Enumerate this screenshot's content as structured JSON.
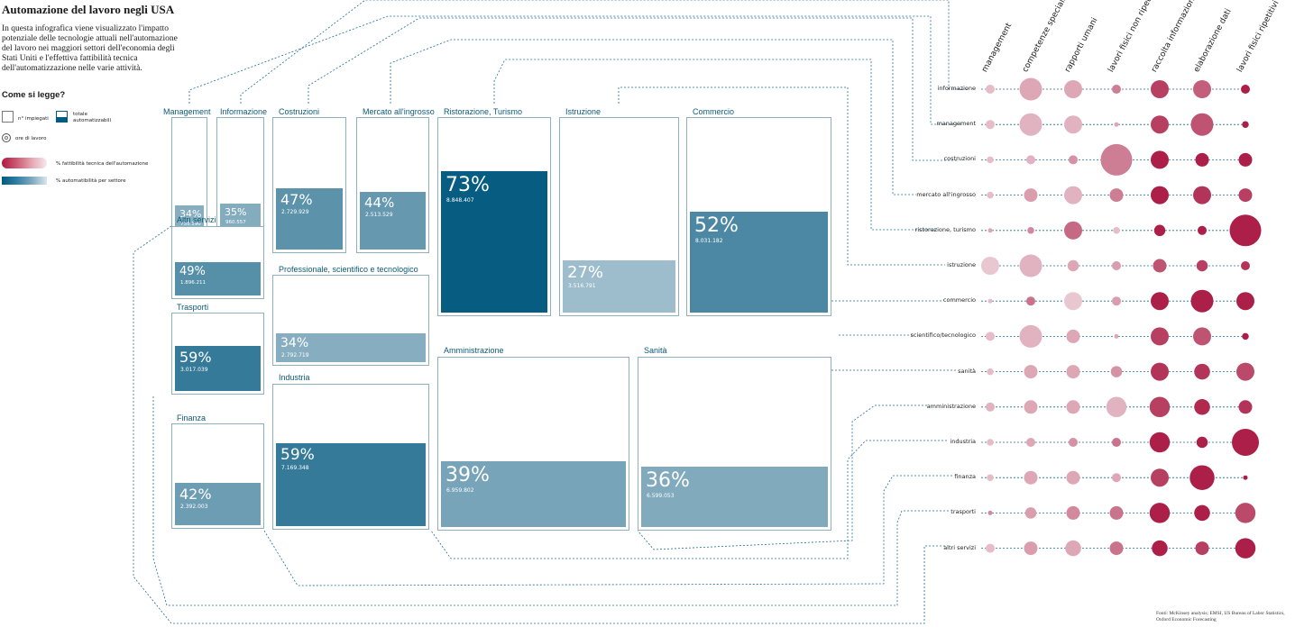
{
  "title": "Automazione del lavoro negli USA",
  "intro": "In questa infografica viene visualizzato l'impatto potenziale delle tecnologie attuali nell'automazione del lavoro nei maggiori settori dell'economia degli Stati Uniti e l'effettiva fattibilità tecnica dell'automatizzazione nelle varie attività.",
  "legend": {
    "title": "Come si legge?",
    "employees": "n° impiegati",
    "automatable_total": "totale automatizzabili",
    "hours": "ore di lavoro",
    "feasibility": "% fattibilità tecnica dell'automazione",
    "sector_automatability": "% automatibilità per settore"
  },
  "colors": {
    "teal_dark": "#005b80",
    "teal_light": "#9fbccb",
    "red_dark": "#a8153f",
    "red_light": "#f0dde1",
    "line": "#1e6e96"
  },
  "source": "Fonti: McKinsey analysis; EMSI, US Bureau of Labor Statistics, Oxford Economic Forecasting",
  "chart_data": {
    "treemap": {
      "type": "treemap",
      "sectors": [
        {
          "label": "Management",
          "pct": "34%",
          "pct_value": 34,
          "employees": "735.190"
        },
        {
          "label": "Informazione",
          "pct": "35%",
          "pct_value": 35,
          "employees": "960.557"
        },
        {
          "label": "Costruzioni",
          "pct": "47%",
          "pct_value": 47,
          "employees": "2.729.929"
        },
        {
          "label": "Mercato all'ingrosso",
          "pct": "44%",
          "pct_value": 44,
          "employees": "2.513.529"
        },
        {
          "label": "Ristorazione, Turismo",
          "pct": "73%",
          "pct_value": 73,
          "employees": "8.848.407"
        },
        {
          "label": "Istruzione",
          "pct": "27%",
          "pct_value": 27,
          "employees": "3.516.791"
        },
        {
          "label": "Commercio",
          "pct": "52%",
          "pct_value": 52,
          "employees": "8.031.182"
        },
        {
          "label": "Altri servizi",
          "pct": "49%",
          "pct_value": 49,
          "employees": "1.896.211"
        },
        {
          "label": "Trasporti",
          "pct": "59%",
          "pct_value": 59,
          "employees": "3.017.039"
        },
        {
          "label": "Finanza",
          "pct": "42%",
          "pct_value": 42,
          "employees": "2.392.003"
        },
        {
          "label": "Professionale, scientifico e tecnologico",
          "pct": "34%",
          "pct_value": 34,
          "employees": "2.792.719"
        },
        {
          "label": "Industria",
          "pct": "59%",
          "pct_value": 59,
          "employees": "7.169.348"
        },
        {
          "label": "Amministrazione",
          "pct": "39%",
          "pct_value": 39,
          "employees": "6.959.802"
        },
        {
          "label": "Sanità",
          "pct": "36%",
          "pct_value": 36,
          "employees": "6.599.053"
        }
      ]
    },
    "bubbles": {
      "type": "scatter",
      "columns": [
        "management",
        "competenze specialistiche",
        "rapporti umani",
        "lavori fisici non ripetitivi",
        "raccolta informazioni",
        "elaborazione dati",
        "lavori fisici ripetitivi"
      ],
      "rows": [
        {
          "label": "informazione",
          "sizes": [
            2,
            5,
            4,
            2,
            4,
            4,
            2
          ],
          "feasibility": [
            0.2,
            0.3,
            0.3,
            0.5,
            0.8,
            0.65,
            0.95
          ]
        },
        {
          "label": "management",
          "sizes": [
            2,
            5,
            4,
            1,
            4,
            5,
            1.5
          ],
          "feasibility": [
            0.2,
            0.25,
            0.25,
            0.3,
            0.8,
            0.7,
            0.95
          ]
        },
        {
          "label": "costruzioni",
          "sizes": [
            1.5,
            2,
            2,
            7,
            4,
            3,
            3
          ],
          "feasibility": [
            0.2,
            0.25,
            0.4,
            0.5,
            0.95,
            0.95,
            0.95
          ]
        },
        {
          "label": "mercato all'ingrosso",
          "sizes": [
            1.5,
            3,
            4,
            3,
            4,
            4,
            3
          ],
          "feasibility": [
            0.2,
            0.35,
            0.25,
            0.5,
            0.95,
            0.85,
            0.8
          ]
        },
        {
          "label": "ristorazione, turismo",
          "sizes": [
            1,
            1.5,
            4,
            1.5,
            2.5,
            2,
            7
          ],
          "feasibility": [
            0.3,
            0.45,
            0.6,
            0.2,
            0.95,
            0.95,
            0.95
          ]
        },
        {
          "label": "istruzione",
          "sizes": [
            4,
            5,
            2.5,
            2,
            3,
            2.5,
            2
          ],
          "feasibility": [
            0.15,
            0.25,
            0.3,
            0.35,
            0.7,
            0.8,
            0.85
          ]
        },
        {
          "label": "commercio",
          "sizes": [
            1,
            2,
            4,
            2,
            4,
            5,
            4
          ],
          "feasibility": [
            0.2,
            0.55,
            0.15,
            0.35,
            0.95,
            0.95,
            0.95
          ]
        },
        {
          "label": "scientifico/tecnologico",
          "sizes": [
            2,
            5,
            3,
            1,
            4,
            4,
            1.5
          ],
          "feasibility": [
            0.2,
            0.25,
            0.3,
            0.3,
            0.8,
            0.7,
            0.95
          ]
        },
        {
          "label": "sanità",
          "sizes": [
            1.5,
            3,
            3,
            2.5,
            4,
            3.5,
            4
          ],
          "feasibility": [
            0.2,
            0.3,
            0.3,
            0.4,
            0.85,
            0.85,
            0.75
          ]
        },
        {
          "label": "amministrazione",
          "sizes": [
            2,
            3,
            3,
            4.5,
            4.5,
            3.5,
            3
          ],
          "feasibility": [
            0.25,
            0.3,
            0.3,
            0.25,
            0.8,
            0.9,
            0.85
          ]
        },
        {
          "label": "industria",
          "sizes": [
            1.5,
            2,
            2,
            2,
            4.5,
            2.5,
            6
          ],
          "feasibility": [
            0.2,
            0.3,
            0.4,
            0.55,
            0.95,
            0.95,
            0.95
          ]
        },
        {
          "label": "finanza",
          "sizes": [
            1.5,
            3,
            3,
            2,
            4,
            5.5,
            1
          ],
          "feasibility": [
            0.2,
            0.3,
            0.3,
            0.3,
            0.8,
            0.95,
            0.95
          ]
        },
        {
          "label": "trasporti",
          "sizes": [
            1,
            2.5,
            3,
            3,
            4.5,
            3.5,
            4.5
          ],
          "feasibility": [
            0.45,
            0.35,
            0.45,
            0.55,
            0.95,
            0.95,
            0.75
          ]
        },
        {
          "label": "altri servizi",
          "sizes": [
            2,
            3,
            3.5,
            3,
            3.5,
            3,
            4.5
          ],
          "feasibility": [
            0.2,
            0.35,
            0.3,
            0.55,
            0.95,
            0.8,
            0.95
          ]
        }
      ]
    }
  }
}
